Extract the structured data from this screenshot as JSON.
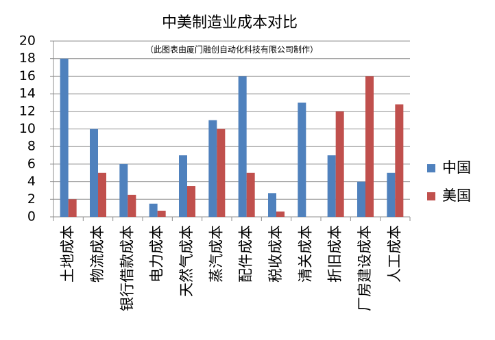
{
  "chart_data": {
    "type": "bar",
    "title": "中美制造业成本对比",
    "subtitle": "（此图表由厦门融创自动化科技有限公司制作）",
    "categories": [
      "土地成本",
      "物流成本",
      "银行借款成本",
      "电力成本",
      "天然气成本",
      "蒸汽成本",
      "配件成本",
      "税收成本",
      "清关成本",
      "折旧成本",
      "厂房建设成本",
      "人工成本"
    ],
    "series": [
      {
        "name": "中国",
        "color": "#4f81bd",
        "values": [
          18,
          10,
          6,
          1.5,
          7,
          11,
          16,
          2.7,
          13,
          7,
          4,
          5
        ]
      },
      {
        "name": "美国",
        "color": "#c0504d",
        "values": [
          2,
          5,
          2.5,
          0.7,
          3.5,
          10,
          5,
          0.6,
          0,
          12,
          16,
          12.8
        ]
      }
    ],
    "ylim": [
      0,
      20
    ],
    "yticks": [
      0,
      2,
      4,
      6,
      8,
      10,
      12,
      14,
      16,
      18,
      20
    ],
    "grid": true,
    "legend": "right"
  }
}
